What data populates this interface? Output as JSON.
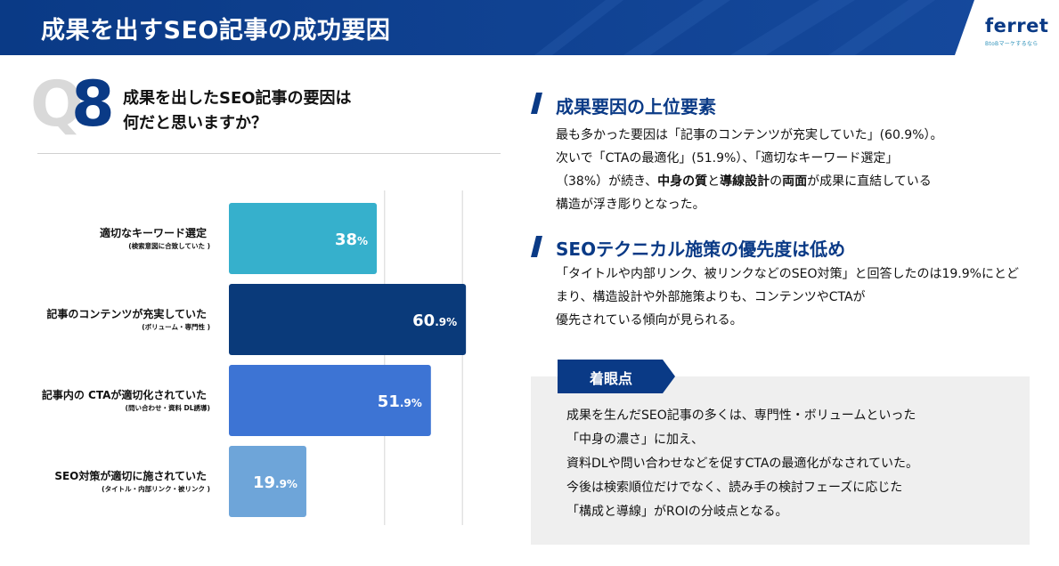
{
  "header": {
    "title": "成果を出すSEO記事の成功要因",
    "logo": "ferret",
    "logo_tagline": "BtoBマーケするなら"
  },
  "question": {
    "letter": "Q",
    "number": "8",
    "line1": "成果を出したSEO記事の要因は",
    "line2": "何だと思いますか？"
  },
  "chart_data": {
    "type": "bar",
    "orientation": "horizontal",
    "categories": [
      "適切なキーワード選定",
      "記事のコンテンツが充実していた",
      "記事内の CTAが適切化されていた",
      "SEO対策が適切に施されていた"
    ],
    "sublabels": [
      "(検索意図に合致していた )",
      "(ボリューム・専門性 )",
      "(問い合わせ・資料 DL誘導)",
      "(タイトル・内部リンク・被リンク )"
    ],
    "values": [
      38,
      60.9,
      51.9,
      19.9
    ],
    "value_labels": [
      {
        "main": "38",
        "unit": "%"
      },
      {
        "main": "60",
        "unit": ".9%"
      },
      {
        "main": "51",
        "unit": ".9%"
      },
      {
        "main": "19",
        "unit": ".9%"
      }
    ],
    "colors": [
      "#36b0cc",
      "#0a3a7a",
      "#3d74d4",
      "#6ea5d9"
    ],
    "xlim": [
      0,
      100
    ],
    "gridlines": [
      40,
      60,
      80
    ],
    "grid": true
  },
  "section1": {
    "title": "成果要因の上位要素",
    "line1": "最も多かった要因は「記事のコンテンツが充実していた」(60.9%）。",
    "line2": "次いで「CTAの最適化」(51.9%）、「適切なキーワード選定」",
    "line3_a": "（38%）が続き、",
    "line3_b1": "中身の質",
    "line3_c": "と",
    "line3_b2": "導線設計",
    "line3_d": "の",
    "line3_b3": "両面",
    "line3_e": "が成果に直結している",
    "line4": "構造が浮き彫りとなった。"
  },
  "section2": {
    "title": "SEOテクニカル施策の優先度は低め",
    "line1": "「タイトルや内部リンク、被リンクなどのSEO対策」と回答したのは19.9%にとど",
    "line2": "まり、構造設計や外部施策よりも、コンテンツやCTAが",
    "line3": "優先されている傾向が見られる。"
  },
  "focus": {
    "tag": "着眼点",
    "line1": "成果を生んだSEO記事の多くは、専門性・ボリュームといった",
    "line2": "「中身の濃さ」に加え、",
    "line3": "資料DLや問い合わせなどを促すCTAの最適化がなされていた。",
    "line4": "今後は検索順位だけでなく、読み手の検討フェーズに応じた",
    "line5": "「構成と導線」がROIの分岐点となる。"
  },
  "colors": {
    "brand_navy": "#0a3a86",
    "focus_bg": "#efefef"
  }
}
